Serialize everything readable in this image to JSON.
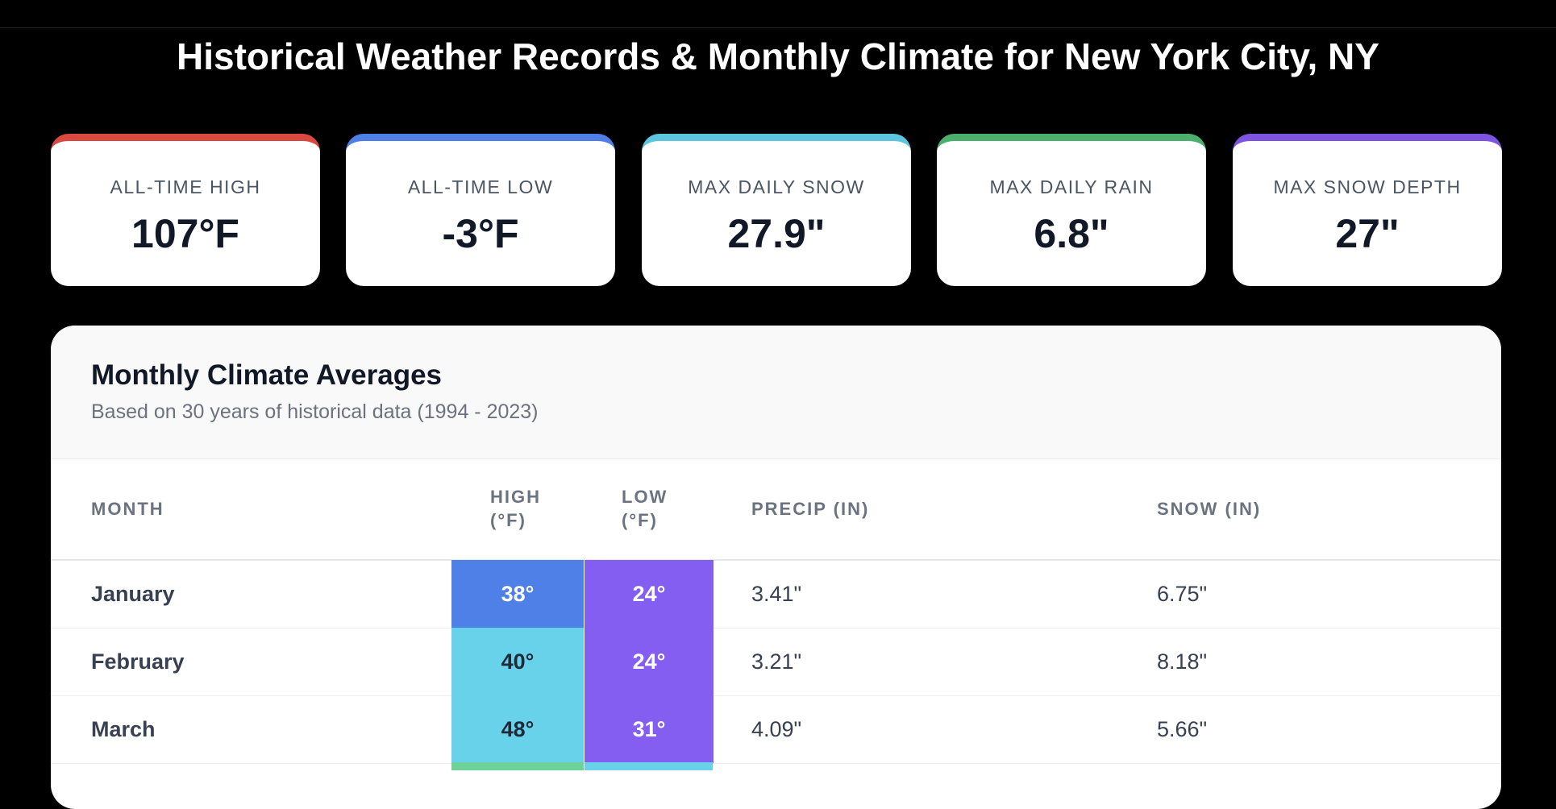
{
  "title": "Historical Weather Records & Monthly Climate for New York City, NY",
  "records": [
    {
      "label": "ALL-TIME HIGH",
      "value": "107°F"
    },
    {
      "label": "ALL-TIME LOW",
      "value": "-3°F"
    },
    {
      "label": "MAX DAILY SNOW",
      "value": "27.9\""
    },
    {
      "label": "MAX DAILY RAIN",
      "value": "6.8\""
    },
    {
      "label": "MAX SNOW DEPTH",
      "value": "27\""
    }
  ],
  "table": {
    "title": "Monthly Climate Averages",
    "subtitle": "Based on 30 years of historical data (1994 - 2023)",
    "columns": [
      "MONTH",
      "HIGH (°F)",
      "LOW (°F)",
      "PRECIP (IN)",
      "SNOW (IN)"
    ],
    "rows": [
      [
        "January",
        "38°",
        "24°",
        "3.41\"",
        "6.75\""
      ],
      [
        "February",
        "40°",
        "24°",
        "3.21\"",
        "8.18\""
      ],
      [
        "March",
        "48°",
        "31°",
        "4.09\"",
        "5.66\""
      ]
    ]
  }
}
